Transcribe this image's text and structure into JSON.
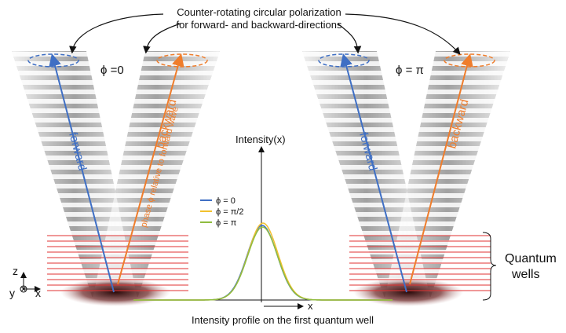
{
  "header": {
    "line1": "Counter-rotating circular polarization",
    "line2": "for forward- and backward-directions"
  },
  "left_panel": {
    "phase": "ϕ =0",
    "forward": "forward",
    "backward": "backward",
    "note": "phase ϕ relative to forward wave"
  },
  "right_panel": {
    "phase": "ϕ = π",
    "forward": "forward",
    "backward": "backward"
  },
  "plot": {
    "y_label": "Intensity(x)",
    "x_label": "x",
    "legend": [
      "ϕ = 0",
      "ϕ = π/2",
      "ϕ = π"
    ]
  },
  "wells_label": {
    "line1": "Quantum",
    "line2": "wells"
  },
  "axes_icon": {
    "z": "z",
    "y": "y",
    "x": "x"
  },
  "caption": "Intensity profile on the first quantum well"
}
